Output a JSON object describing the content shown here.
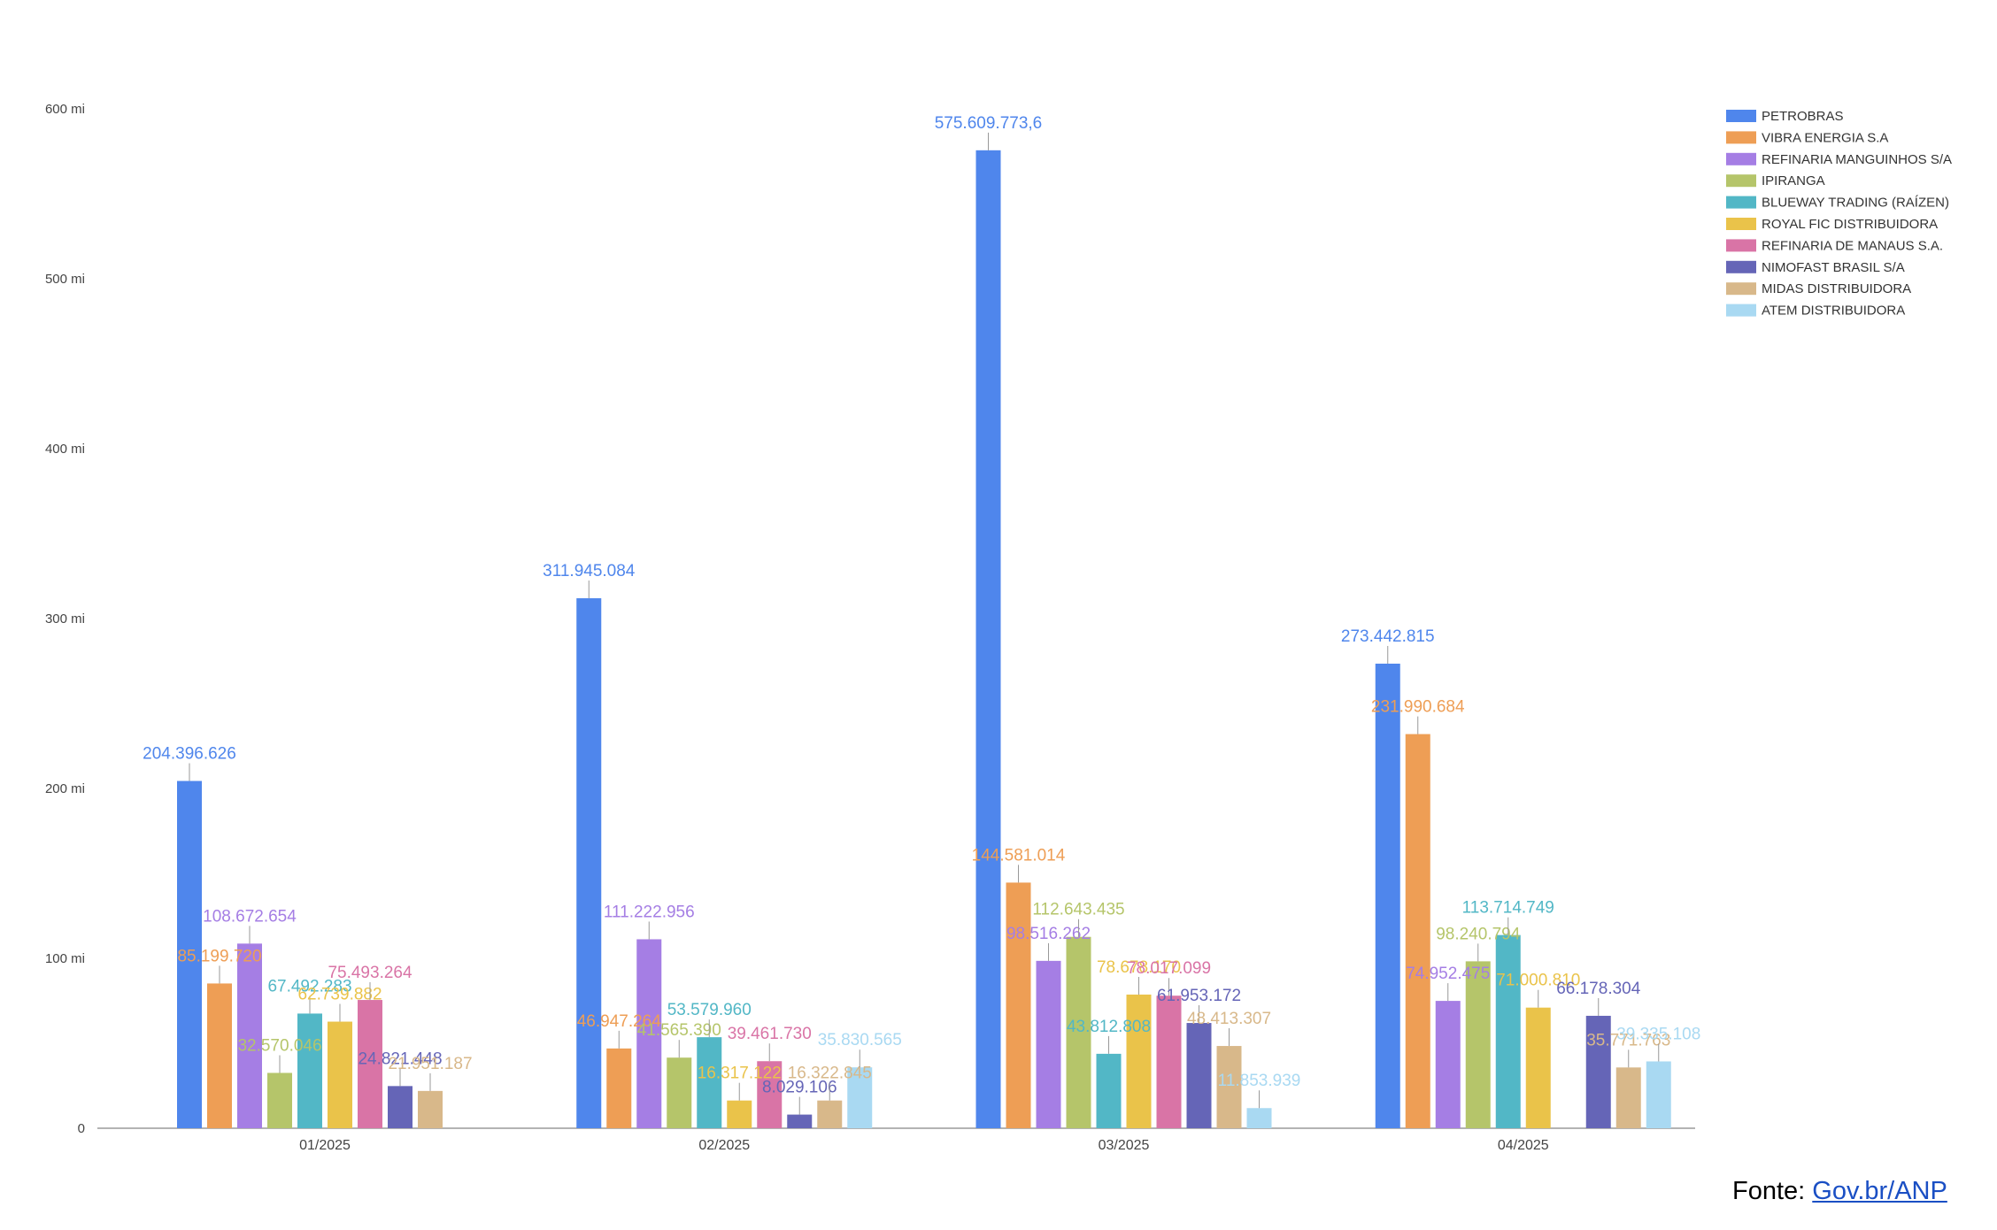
{
  "source": {
    "prefix": "Fonte: ",
    "link_text": "Gov.br/ANP"
  },
  "chart_data": {
    "type": "bar",
    "title": "",
    "xlabel": "",
    "ylabel": "",
    "ylim": [
      0,
      600000000
    ],
    "y_ticks": [
      0,
      100000000,
      200000000,
      300000000,
      400000000,
      500000000,
      600000000
    ],
    "y_tick_labels": [
      "0",
      "100 mi",
      "200 mi",
      "300 mi",
      "400 mi",
      "500 mi",
      "600 mi"
    ],
    "grid": false,
    "legend_position": "top-right",
    "categories": [
      "01/2025",
      "02/2025",
      "03/2025",
      "04/2025"
    ],
    "series": [
      {
        "name": "PETROBRAS",
        "color": "#4f86ec",
        "values": [
          204396626,
          311945084,
          575609773.6,
          273442815
        ],
        "labels": [
          "204.396.626",
          "311.945.084",
          "575.609.773,6",
          "273.442.815"
        ]
      },
      {
        "name": "VIBRA ENERGIA S.A",
        "color": "#ee9e55",
        "values": [
          85199720,
          46947264,
          144581014,
          231990684
        ],
        "labels": [
          "85.199.720",
          "46.947.264",
          "144.581.014",
          "231.990.684"
        ]
      },
      {
        "name": "REFINARIA MANGUINHOS S/A",
        "color": "#a57ee4",
        "values": [
          108672654,
          111222956,
          98516262,
          74952475
        ],
        "labels": [
          "108.672.654",
          "111.222.956",
          "98.516.262",
          "74.952.475"
        ]
      },
      {
        "name": "IPIRANGA",
        "color": "#b5c56a",
        "values": [
          32570046,
          41565390,
          112643435,
          98240794
        ],
        "labels": [
          "32.570.046",
          "41.565.390",
          "112.643.435",
          "98.240.794"
        ]
      },
      {
        "name": "BLUEWAY TRADING (RAÍZEN)",
        "color": "#52b7c6",
        "values": [
          67492283,
          53579960,
          43812808,
          113714749
        ],
        "labels": [
          "67.492.283",
          "53.579.960",
          "43.812.808",
          "113.714.749"
        ]
      },
      {
        "name": "ROYAL FIC DISTRIBUIDORA",
        "color": "#eac34a",
        "values": [
          62739882,
          16317122,
          78678170,
          71000810
        ],
        "labels": [
          "62.739.882",
          "16.317.122",
          "78.678.170",
          "71.000.810"
        ]
      },
      {
        "name": "REFINARIA DE MANAUS S.A.",
        "color": "#d974a6",
        "values": [
          75493264,
          39461730,
          78017099,
          null
        ],
        "labels": [
          "75.493.264",
          "39.461.730",
          "78.017.099",
          ""
        ]
      },
      {
        "name": "NIMOFAST BRASIL S/A",
        "color": "#6565b7",
        "values": [
          24821448,
          8029106,
          61953172,
          66178304
        ],
        "labels": [
          "24.821.448",
          "8.029.106",
          "61.953.172",
          "66.178.304"
        ]
      },
      {
        "name": "MIDAS DISTRIBUIDORA",
        "color": "#d8b88a",
        "values": [
          21951187,
          16322845,
          48413307,
          35771763
        ],
        "labels": [
          "21.951.187",
          "16.322.845",
          "48.413.307",
          "35.771.763"
        ]
      },
      {
        "name": "ATEM DISTRIBUIDORA",
        "color": "#a9d9f2",
        "values": [
          null,
          35830565,
          11853939,
          39335108
        ],
        "labels": [
          "",
          "35.830.565",
          "11.853.939",
          "39.335.108"
        ]
      }
    ]
  }
}
